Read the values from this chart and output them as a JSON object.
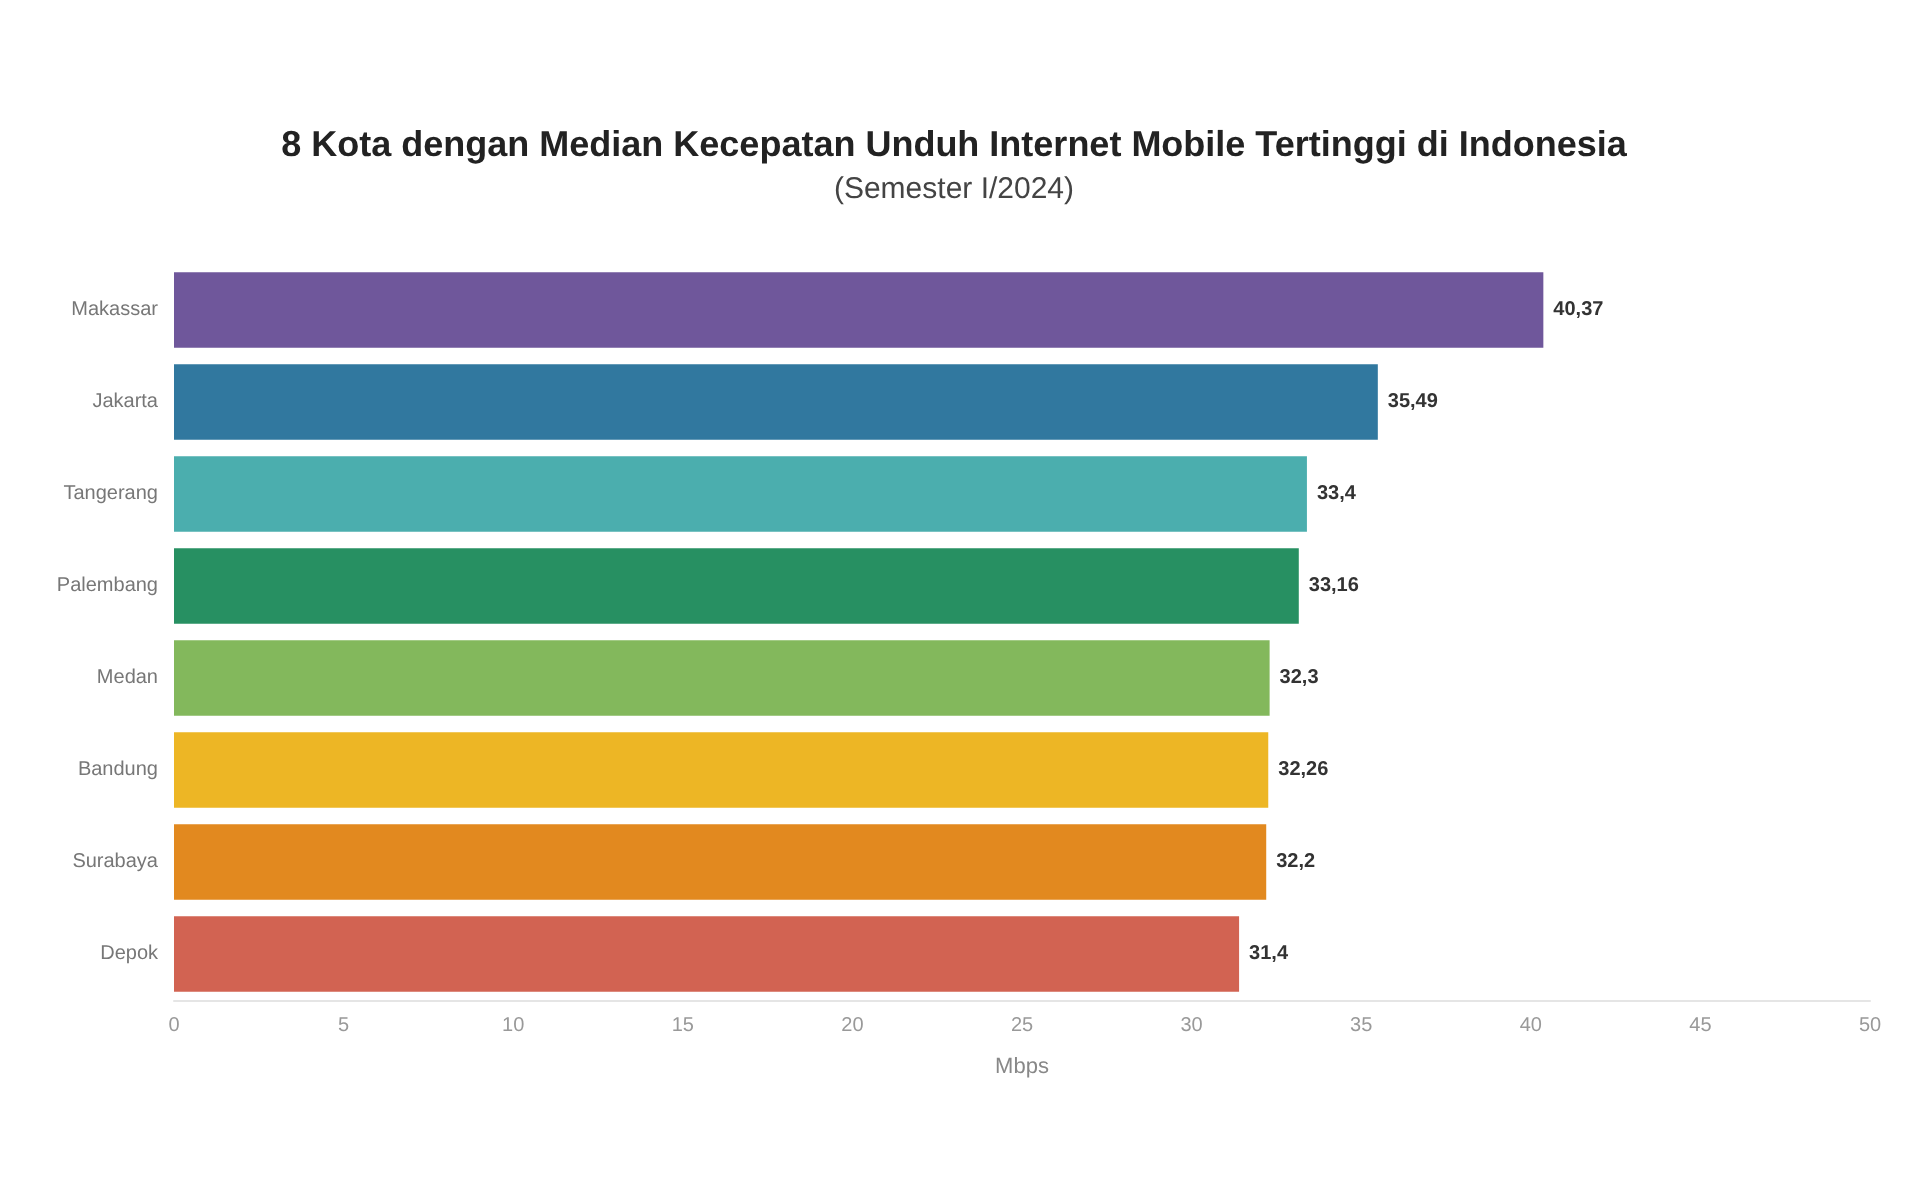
{
  "chart_data": {
    "type": "bar",
    "orientation": "horizontal",
    "title": "8 Kota dengan Median Kecepatan Unduh Internet Mobile Tertinggi di Indonesia",
    "subtitle": "(Semester I/2024)",
    "xlabel": "Mbps",
    "categories": [
      "Makassar",
      "Jakarta",
      "Tangerang",
      "Palembang",
      "Medan",
      "Bandung",
      "Surabaya",
      "Depok"
    ],
    "values": [
      40.37,
      35.49,
      33.4,
      33.16,
      32.3,
      32.26,
      32.2,
      31.4
    ],
    "value_labels": [
      "40,37",
      "35,49",
      "33,4",
      "33,16",
      "32,3",
      "32,26",
      "32,2",
      "31,4"
    ],
    "colors": [
      "#6f579b",
      "#31789f",
      "#4baeae",
      "#279062",
      "#83b85c",
      "#edb625",
      "#e2891f",
      "#d26352"
    ],
    "xlim": [
      0,
      50
    ],
    "xticks": [
      0,
      5,
      10,
      15,
      20,
      25,
      30,
      35,
      40,
      45,
      50
    ],
    "grid": false
  }
}
